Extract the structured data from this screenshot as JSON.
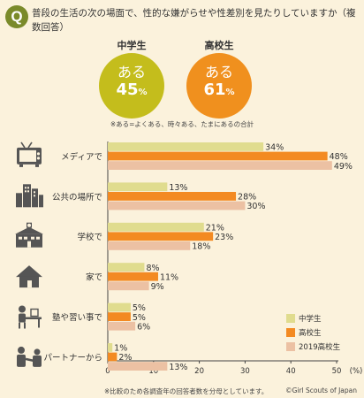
{
  "question": "普段の生活の次の場面で、性的な嫌がらせや性差別を見たりしていますか（複数回答）",
  "question_badge": "Q",
  "groups": [
    {
      "label": "中学生",
      "aru": "ある",
      "value": "45",
      "unit": "%",
      "color": "#c4bd1c"
    },
    {
      "label": "高校生",
      "aru": "ある",
      "value": "61",
      "unit": "%",
      "color": "#f0901e"
    }
  ],
  "note_top": "※ある=よくある、時々ある、たまにあるの合計",
  "note_bottom": "※比較のため各調査年の回答者数を分母としています。",
  "copyright": "©Girl Scouts of Japan",
  "colors": {
    "middle": "#e0dc8e",
    "high": "#f38a22",
    "high2019": "#ecc1a3",
    "icon": "#555555"
  },
  "icons": [
    "tv-icon",
    "buildings-icon",
    "school-icon",
    "house-icon",
    "desk-icon",
    "couple-icon"
  ],
  "chart_data": {
    "type": "bar",
    "orientation": "horizontal",
    "categories": [
      "メディアで",
      "公共の場所で",
      "学校で",
      "家で",
      "塾や習い事で",
      "パートナーから"
    ],
    "series": [
      {
        "name": "中学生",
        "values": [
          34,
          13,
          21,
          8,
          5,
          1
        ]
      },
      {
        "name": "高校生",
        "values": [
          48,
          28,
          23,
          11,
          5,
          2
        ]
      },
      {
        "name": "2019高校生",
        "values": [
          49,
          30,
          18,
          9,
          6,
          13
        ]
      }
    ],
    "value_suffix": "%",
    "xticks": [
      0,
      10,
      20,
      30,
      40,
      50
    ],
    "xunit": "(%)",
    "xlim": [
      0,
      50
    ],
    "legend_position": "bottom-right"
  }
}
